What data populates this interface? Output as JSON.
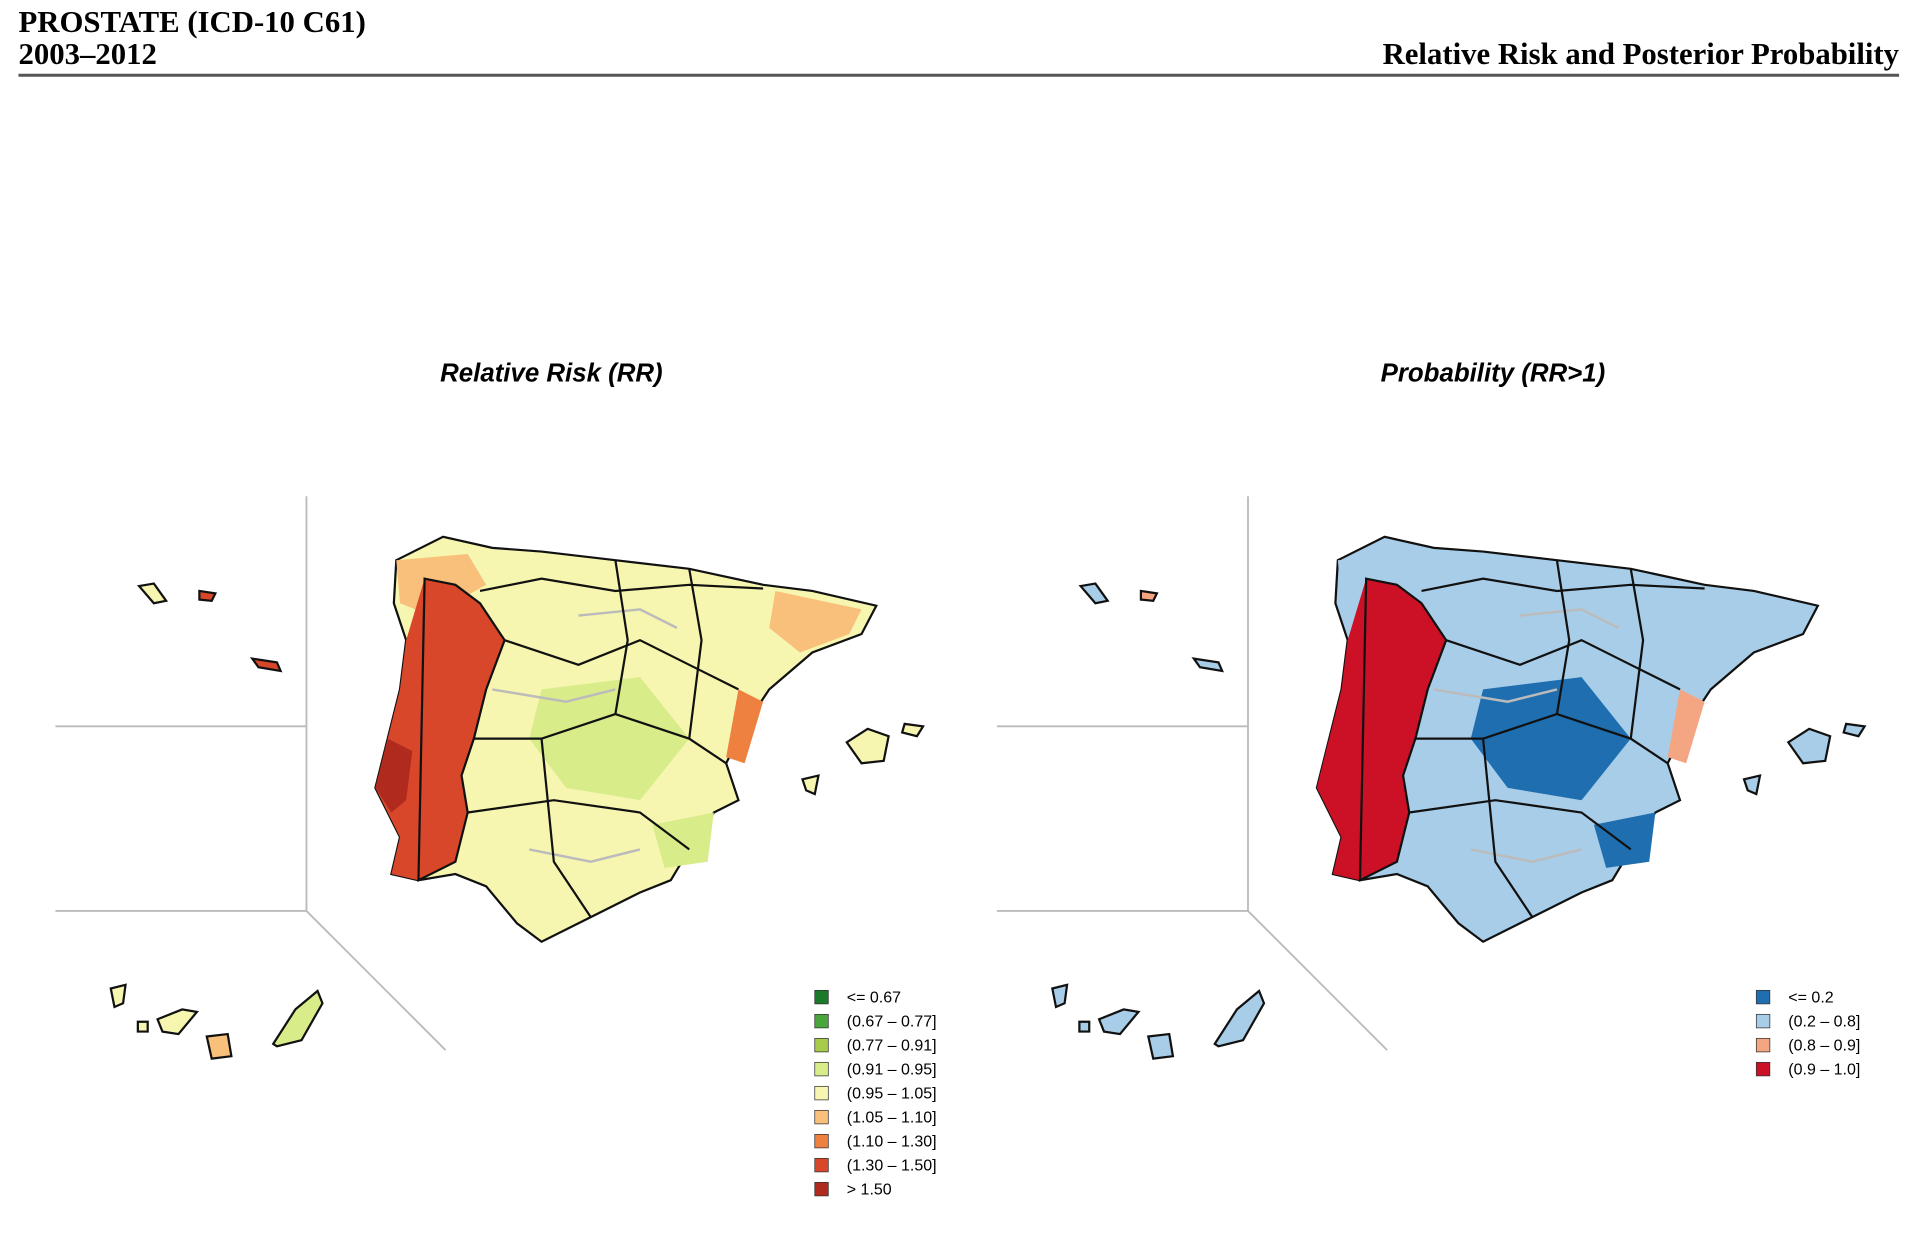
{
  "header": {
    "title": "PROSTATE (ICD-10 C61)",
    "period": "2003–2012",
    "subtitle": "Relative Risk and Posterior Probability"
  },
  "panels": [
    {
      "title": "Relative Risk (RR)",
      "legend": [
        {
          "label": "<= 0.67",
          "color": "#1a7a2a"
        },
        {
          "label": "(0.67 – 0.77]",
          "color": "#4aa53a"
        },
        {
          "label": "(0.77 – 0.91]",
          "color": "#a6cc4a"
        },
        {
          "label": "(0.91 – 0.95]",
          "color": "#d9ec8a"
        },
        {
          "label": "(0.95 – 1.05]",
          "color": "#f6f6b0"
        },
        {
          "label": "(1.05 – 1.10]",
          "color": "#f8c07a"
        },
        {
          "label": "(1.10 – 1.30]",
          "color": "#ef8140"
        },
        {
          "label": "(1.30 – 1.50]",
          "color": "#d9472b"
        },
        {
          "label": "> 1.50",
          "color": "#b02a1e"
        }
      ]
    },
    {
      "title": "Probability (RR>1)",
      "legend": [
        {
          "label": "<= 0.2",
          "color": "#1f6fb0"
        },
        {
          "label": "(0.2 – 0.8]",
          "color": "#a8cde8"
        },
        {
          "label": "(0.8 – 0.9]",
          "color": "#f4a582"
        },
        {
          "label": "(0.9 – 1.0]",
          "color": "#cc1127"
        }
      ]
    }
  ]
}
